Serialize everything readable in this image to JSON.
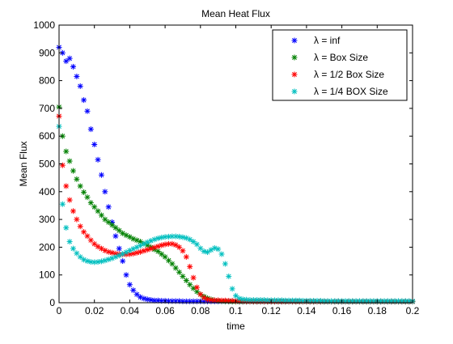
{
  "chart_data": {
    "type": "scatter",
    "title": "Mean Heat Flux",
    "xlabel": "time",
    "ylabel": "Mean Flux",
    "xlim": [
      0,
      0.2
    ],
    "ylim": [
      0,
      1000
    ],
    "xticks": [
      0,
      0.02,
      0.04,
      0.06,
      0.08,
      0.1,
      0.12,
      0.14,
      0.16,
      0.18,
      0.2
    ],
    "xtick_labels": [
      "0",
      "0.02",
      "0.04",
      "0.06",
      "0.08",
      "0.1",
      "0.12",
      "0.14",
      "0.16",
      "0.18",
      "0.2"
    ],
    "yticks": [
      0,
      100,
      200,
      300,
      400,
      500,
      600,
      700,
      800,
      900,
      1000
    ],
    "ytick_labels": [
      "0",
      "100",
      "200",
      "300",
      "400",
      "500",
      "600",
      "700",
      "800",
      "900",
      "1000"
    ],
    "grid": false,
    "legend_position": "top-right",
    "marker": "asterisk",
    "series": [
      {
        "name": "λ = inf",
        "color": "#0000ff",
        "x": [
          0.0,
          0.002,
          0.004,
          0.006,
          0.008,
          0.01,
          0.012,
          0.014,
          0.016,
          0.018,
          0.02,
          0.022,
          0.024,
          0.026,
          0.028,
          0.03,
          0.032,
          0.034,
          0.036,
          0.038,
          0.04,
          0.042,
          0.044,
          0.046,
          0.048,
          0.05,
          0.052,
          0.054,
          0.056,
          0.058,
          0.06,
          0.062,
          0.064,
          0.066,
          0.068,
          0.07,
          0.072,
          0.074,
          0.076,
          0.078,
          0.08,
          0.082,
          0.084,
          0.086,
          0.088,
          0.09,
          0.092,
          0.094,
          0.096,
          0.098,
          0.1,
          0.102,
          0.104,
          0.106,
          0.108,
          0.11,
          0.112,
          0.114,
          0.116,
          0.118,
          0.12,
          0.122,
          0.124,
          0.126,
          0.128,
          0.13,
          0.132,
          0.134,
          0.136,
          0.138,
          0.14,
          0.142,
          0.144,
          0.146,
          0.148,
          0.15,
          0.152,
          0.154,
          0.156,
          0.158,
          0.16,
          0.162,
          0.164,
          0.166,
          0.168,
          0.17,
          0.172,
          0.174,
          0.176,
          0.178,
          0.18,
          0.182,
          0.184,
          0.186,
          0.188,
          0.19,
          0.192,
          0.194,
          0.196,
          0.198,
          0.2
        ],
        "y": [
          920,
          900,
          870,
          880,
          850,
          815,
          780,
          730,
          690,
          625,
          570,
          515,
          460,
          400,
          345,
          290,
          240,
          195,
          150,
          100,
          65,
          45,
          30,
          20,
          15,
          12,
          10,
          8,
          8,
          7,
          7,
          6,
          6,
          6,
          6,
          5,
          5,
          5,
          5,
          5,
          5,
          5,
          5,
          5,
          5,
          5,
          5,
          5,
          5,
          5,
          5,
          4,
          4,
          4,
          4,
          4,
          4,
          4,
          4,
          4,
          4,
          4,
          4,
          4,
          4,
          4,
          4,
          4,
          4,
          4,
          4,
          4,
          4,
          4,
          4,
          4,
          4,
          4,
          4,
          4,
          4,
          4,
          4,
          4,
          4,
          4,
          4,
          4,
          4,
          4,
          4,
          4,
          4,
          4,
          4,
          4,
          4,
          4,
          4,
          4,
          4
        ]
      },
      {
        "name": "λ = Box Size",
        "color": "#008000",
        "x": [
          0.0,
          0.002,
          0.004,
          0.006,
          0.008,
          0.01,
          0.012,
          0.014,
          0.016,
          0.018,
          0.02,
          0.022,
          0.024,
          0.026,
          0.028,
          0.03,
          0.032,
          0.034,
          0.036,
          0.038,
          0.04,
          0.042,
          0.044,
          0.046,
          0.048,
          0.05,
          0.052,
          0.054,
          0.056,
          0.058,
          0.06,
          0.062,
          0.064,
          0.066,
          0.068,
          0.07,
          0.072,
          0.074,
          0.076,
          0.078,
          0.08,
          0.082,
          0.084,
          0.086,
          0.088,
          0.09,
          0.092,
          0.094,
          0.096,
          0.098,
          0.1,
          0.102,
          0.104,
          0.106,
          0.108,
          0.11,
          0.112,
          0.114,
          0.116,
          0.118,
          0.12,
          0.122,
          0.124,
          0.126,
          0.128,
          0.13,
          0.132,
          0.134,
          0.136,
          0.138,
          0.14,
          0.142,
          0.144,
          0.146,
          0.148,
          0.15,
          0.152,
          0.154,
          0.156,
          0.158,
          0.16,
          0.162,
          0.164,
          0.166,
          0.168,
          0.17,
          0.172,
          0.174,
          0.176,
          0.178,
          0.18,
          0.182,
          0.184,
          0.186,
          0.188,
          0.19,
          0.192,
          0.194,
          0.196,
          0.198,
          0.2
        ],
        "y": [
          705,
          600,
          545,
          510,
          475,
          445,
          420,
          398,
          380,
          360,
          345,
          330,
          315,
          300,
          290,
          280,
          270,
          260,
          250,
          243,
          237,
          230,
          225,
          220,
          213,
          207,
          200,
          192,
          185,
          175,
          165,
          152,
          140,
          125,
          110,
          95,
          80,
          65,
          52,
          40,
          30,
          22,
          16,
          12,
          9,
          7,
          6,
          5,
          5,
          4,
          4,
          4,
          4,
          4,
          4,
          4,
          4,
          4,
          4,
          4,
          4,
          4,
          4,
          4,
          4,
          4,
          4,
          4,
          4,
          4,
          4,
          4,
          4,
          4,
          4,
          4,
          4,
          4,
          4,
          4,
          4,
          4,
          4,
          4,
          4,
          4,
          4,
          4,
          4,
          4,
          4,
          4,
          4,
          4,
          4,
          4,
          4,
          4,
          4,
          4,
          4
        ]
      },
      {
        "name": "λ = 1/2 Box Size",
        "color": "#ff0000",
        "x": [
          0.0,
          0.002,
          0.004,
          0.006,
          0.008,
          0.01,
          0.012,
          0.014,
          0.016,
          0.018,
          0.02,
          0.022,
          0.024,
          0.026,
          0.028,
          0.03,
          0.032,
          0.034,
          0.036,
          0.038,
          0.04,
          0.042,
          0.044,
          0.046,
          0.048,
          0.05,
          0.052,
          0.054,
          0.056,
          0.058,
          0.06,
          0.062,
          0.064,
          0.066,
          0.068,
          0.07,
          0.072,
          0.074,
          0.076,
          0.078,
          0.08,
          0.082,
          0.084,
          0.086,
          0.088,
          0.09,
          0.092,
          0.094,
          0.096,
          0.098,
          0.1,
          0.102,
          0.104,
          0.106,
          0.108,
          0.11,
          0.112,
          0.114,
          0.116,
          0.118,
          0.12,
          0.122,
          0.124,
          0.126,
          0.128,
          0.13,
          0.132,
          0.134,
          0.136,
          0.138,
          0.14,
          0.142,
          0.144,
          0.146,
          0.148,
          0.15,
          0.152,
          0.154,
          0.156,
          0.158,
          0.16,
          0.162,
          0.164,
          0.166,
          0.168,
          0.17,
          0.172,
          0.174,
          0.176,
          0.178,
          0.18,
          0.182,
          0.184,
          0.186,
          0.188,
          0.19,
          0.192,
          0.194,
          0.196,
          0.198,
          0.2
        ],
        "y": [
          672,
          495,
          420,
          370,
          330,
          300,
          275,
          255,
          240,
          225,
          212,
          202,
          195,
          188,
          183,
          180,
          177,
          175,
          174,
          174,
          175,
          177,
          180,
          183,
          187,
          191,
          195,
          199,
          203,
          207,
          210,
          212,
          212,
          208,
          200,
          187,
          165,
          130,
          90,
          55,
          30,
          18,
          12,
          10,
          9,
          9,
          8,
          8,
          7,
          7,
          6,
          6,
          6,
          5,
          5,
          5,
          5,
          5,
          5,
          5,
          5,
          5,
          5,
          5,
          5,
          5,
          5,
          5,
          5,
          5,
          5,
          5,
          5,
          5,
          5,
          5,
          5,
          5,
          5,
          5,
          5,
          5,
          5,
          5,
          5,
          5,
          5,
          5,
          5,
          5,
          5,
          5,
          5,
          5,
          5,
          5,
          5,
          5,
          5,
          5,
          5
        ]
      },
      {
        "name": "λ = 1/4 BOX Size",
        "color": "#00bfbf",
        "x": [
          0.0,
          0.002,
          0.004,
          0.006,
          0.008,
          0.01,
          0.012,
          0.014,
          0.016,
          0.018,
          0.02,
          0.022,
          0.024,
          0.026,
          0.028,
          0.03,
          0.032,
          0.034,
          0.036,
          0.038,
          0.04,
          0.042,
          0.044,
          0.046,
          0.048,
          0.05,
          0.052,
          0.054,
          0.056,
          0.058,
          0.06,
          0.062,
          0.064,
          0.066,
          0.068,
          0.07,
          0.072,
          0.074,
          0.076,
          0.078,
          0.08,
          0.082,
          0.084,
          0.086,
          0.088,
          0.09,
          0.092,
          0.094,
          0.096,
          0.098,
          0.1,
          0.102,
          0.104,
          0.106,
          0.108,
          0.11,
          0.112,
          0.114,
          0.116,
          0.118,
          0.12,
          0.122,
          0.124,
          0.126,
          0.128,
          0.13,
          0.132,
          0.134,
          0.136,
          0.138,
          0.14,
          0.142,
          0.144,
          0.146,
          0.148,
          0.15,
          0.152,
          0.154,
          0.156,
          0.158,
          0.16,
          0.162,
          0.164,
          0.166,
          0.168,
          0.17,
          0.172,
          0.174,
          0.176,
          0.178,
          0.18,
          0.182,
          0.184,
          0.186,
          0.188,
          0.19,
          0.192,
          0.194,
          0.196,
          0.198,
          0.2
        ],
        "y": [
          635,
          355,
          270,
          220,
          195,
          178,
          165,
          155,
          150,
          147,
          146,
          147,
          149,
          152,
          156,
          160,
          165,
          170,
          176,
          182,
          188,
          194,
          200,
          206,
          212,
          218,
          223,
          228,
          232,
          235,
          237,
          238,
          239,
          239,
          238,
          236,
          233,
          228,
          220,
          210,
          196,
          185,
          182,
          190,
          197,
          193,
          175,
          140,
          95,
          50,
          25,
          15,
          12,
          11,
          10,
          10,
          10,
          10,
          10,
          9,
          9,
          9,
          9,
          9,
          8,
          8,
          8,
          8,
          8,
          7,
          7,
          7,
          7,
          7,
          7,
          6,
          6,
          6,
          6,
          6,
          6,
          6,
          6,
          6,
          6,
          6,
          6,
          6,
          6,
          6,
          6,
          6,
          6,
          6,
          6,
          6,
          6,
          6,
          6,
          6,
          6
        ]
      }
    ]
  }
}
